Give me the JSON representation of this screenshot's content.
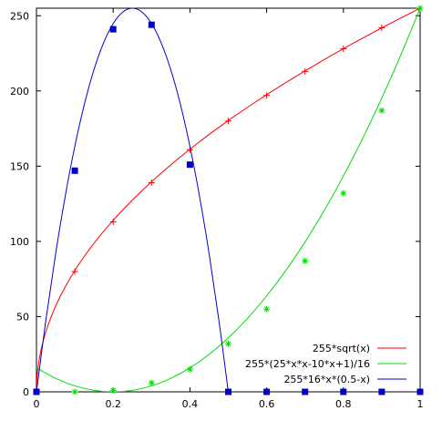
{
  "chart_data": {
    "type": "line",
    "xlim": [
      0,
      1
    ],
    "ylim": [
      0,
      255
    ],
    "x_ticks": [
      0,
      0.2,
      0.4,
      0.6,
      0.8,
      1
    ],
    "x_tick_labels": [
      "0",
      "0.2",
      "0.4",
      "0.6",
      "0.8",
      "1"
    ],
    "y_ticks": [
      0,
      50,
      100,
      150,
      200,
      250
    ],
    "y_tick_labels": [
      "0",
      "50",
      "100",
      "150",
      "200",
      "250"
    ],
    "grid": false,
    "legend_position": "bottom-right",
    "series": [
      {
        "name": "255*sqrt(x)",
        "color": "#ff0000",
        "marker": "plus",
        "curve_x": [
          0,
          0.0025,
          0.01,
          0.0225,
          0.04,
          0.0625,
          0.09,
          0.1225,
          0.16,
          0.2025,
          0.25,
          0.3025,
          0.36,
          0.4225,
          0.49,
          0.5625,
          0.64,
          0.7225,
          0.81,
          0.9025,
          1
        ],
        "curve_y": [
          0,
          12.75,
          25.5,
          38.25,
          51,
          63.75,
          76.5,
          89.25,
          102,
          114.75,
          127.5,
          140.25,
          153,
          165.75,
          178.5,
          191.25,
          204,
          216.75,
          229.5,
          242.25,
          255
        ],
        "points": [
          [
            0.1,
            80
          ],
          [
            0.2,
            113
          ],
          [
            0.3,
            139
          ],
          [
            0.4,
            161
          ],
          [
            0.5,
            180
          ],
          [
            0.6,
            197
          ],
          [
            0.7,
            213
          ],
          [
            0.8,
            228
          ],
          [
            0.9,
            242
          ],
          [
            1.0,
            255
          ]
        ]
      },
      {
        "name": "255*(25*x*x-10*x+1)/16",
        "color": "#00dd00",
        "marker": "star",
        "curve_x": [
          0,
          0.05,
          0.1,
          0.15,
          0.2,
          0.25,
          0.3,
          0.35,
          0.4,
          0.45,
          0.5,
          0.55,
          0.6,
          0.65,
          0.7,
          0.75,
          0.8,
          0.85,
          0.9,
          0.95,
          1
        ],
        "curve_y": [
          15.94,
          8.97,
          3.98,
          1.0,
          0,
          1.0,
          3.98,
          8.97,
          15.94,
          24.9,
          35.86,
          48.81,
          63.75,
          80.68,
          99.61,
          120.53,
          143.44,
          168.34,
          195.23,
          224.12,
          255
        ],
        "points": [
          [
            0.1,
            0
          ],
          [
            0.2,
            1
          ],
          [
            0.3,
            6
          ],
          [
            0.4,
            15
          ],
          [
            0.5,
            32
          ],
          [
            0.6,
            55
          ],
          [
            0.7,
            87
          ],
          [
            0.8,
            132
          ],
          [
            0.9,
            187
          ],
          [
            1.0,
            255
          ]
        ]
      },
      {
        "name": "255*16*x*(0.5-x)",
        "color": "#0000cc",
        "marker": "square",
        "curve_x": [
          0,
          0.025,
          0.05,
          0.075,
          0.1,
          0.125,
          0.15,
          0.175,
          0.2,
          0.225,
          0.25,
          0.275,
          0.3,
          0.325,
          0.35,
          0.375,
          0.4,
          0.425,
          0.45,
          0.475,
          0.5
        ],
        "curve_y": [
          0,
          48.45,
          91.8,
          130.05,
          163.2,
          191.25,
          214.2,
          232.05,
          244.8,
          252.45,
          255,
          252.45,
          244.8,
          232.05,
          214.2,
          191.25,
          163.2,
          130.05,
          91.8,
          48.45,
          0
        ],
        "points": [
          [
            0,
            0
          ],
          [
            0.1,
            147
          ],
          [
            0.2,
            241
          ],
          [
            0.3,
            244
          ],
          [
            0.4,
            151
          ],
          [
            0.5,
            0
          ],
          [
            0.6,
            0
          ],
          [
            0.7,
            0
          ],
          [
            0.8,
            0
          ],
          [
            0.9,
            0
          ],
          [
            1.0,
            0
          ]
        ]
      }
    ]
  }
}
